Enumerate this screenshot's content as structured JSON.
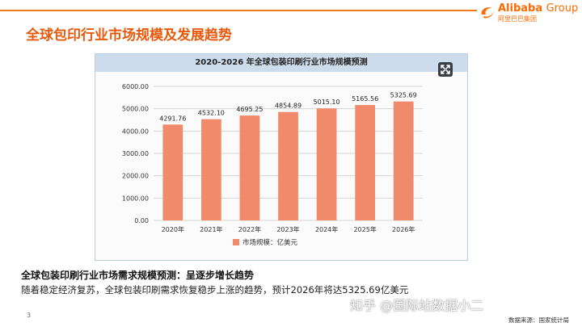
{
  "header": {
    "title": "全球包印行业市场规模及发展趋势",
    "logo": {
      "name": "Alibaba",
      "suffix": "Group",
      "sub": "阿里巴巴集团",
      "color": "#ff6a00"
    },
    "accent": "#f07a1a"
  },
  "chart_data": {
    "type": "bar",
    "title": "2020-2026 年全球包装印刷行业市场规模预测",
    "categories": [
      "2020年",
      "2021年",
      "2022年",
      "2023年",
      "2024年",
      "2025年",
      "2026年"
    ],
    "values": [
      4291.76,
      4532.1,
      4695.25,
      4854.89,
      5015.1,
      5165.56,
      5325.69
    ],
    "data_labels": [
      "4291.76",
      "4532.10",
      "4695.25",
      "4854.89",
      "5015.10",
      "5165.56",
      "5325.69"
    ],
    "series": [
      {
        "name": "市场规模：亿美元",
        "values": [
          4291.76,
          4532.1,
          4695.25,
          4854.89,
          5015.1,
          5165.56,
          5325.69
        ]
      }
    ],
    "yticks": [
      "0.00",
      "1000.00",
      "2000.00",
      "3000.00",
      "4000.00",
      "5000.00",
      "6000.00"
    ],
    "ylim": [
      0,
      6000
    ],
    "grid": true,
    "legend_position": "bottom",
    "bar_color": "#f08a6a"
  },
  "caption": {
    "title": "全球包装印刷行业市场需求规模预测：呈逐步增长趋势",
    "body": "随着稳定经济复苏，全球包装印刷需求恢复稳步上涨的趋势，预计2026年将达5325.69亿美元"
  },
  "watermark": "知乎 @国际站数据小二",
  "footer": {
    "page_number": "3",
    "source": "数据来源：国家统计局"
  }
}
